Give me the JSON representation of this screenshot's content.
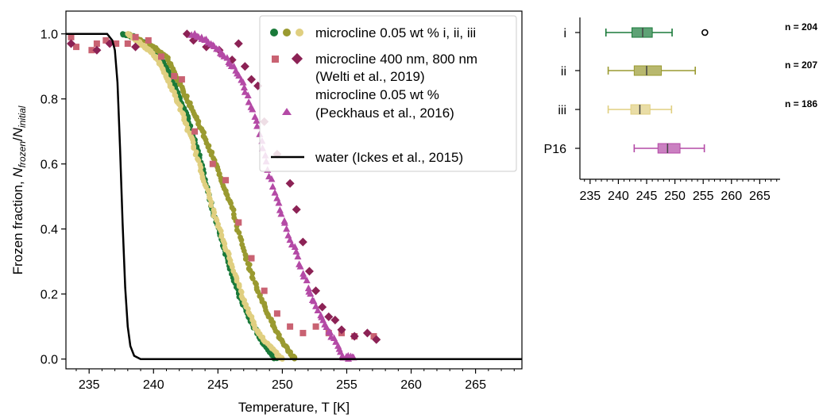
{
  "chart_data": [
    {
      "type": "scatter",
      "xlabel": "Temperature, T [K]",
      "ylabel": "Frozen fraction, N_frozen/N_initial",
      "xlim": [
        233.2,
        268.6
      ],
      "ylim": [
        -0.03,
        1.07
      ],
      "xticks": [
        "235",
        "240",
        "245",
        "250",
        "255",
        "260",
        "265"
      ],
      "yticks": [
        "0.0",
        "0.2",
        "0.4",
        "0.6",
        "0.8",
        "1.0"
      ],
      "legend": {
        "placement": "top-right",
        "entries": [
          {
            "lines": [
              "microcline 0.05 wt % i, ii, iii"
            ]
          },
          {
            "lines": [
              "microcline 400 nm, 800 nm",
              "(Welti et al., 2019)"
            ]
          },
          {
            "lines": [
              "microcline 0.05 wt %",
              "(Peckhaus et al., 2016)"
            ]
          },
          {
            "lines": [
              "water (Ickes et al., 2015)"
            ]
          }
        ]
      },
      "series": [
        {
          "name": "microcline 0.05 wt % i",
          "color": "#1a7a3a",
          "marker": "circle",
          "curve": [
            [
              237.6,
              1.0
            ],
            [
              238.5,
              0.99
            ],
            [
              239.5,
              0.97
            ],
            [
              240.5,
              0.93
            ],
            [
              241.5,
              0.86
            ],
            [
              242.5,
              0.76
            ],
            [
              243.5,
              0.63
            ],
            [
              244.5,
              0.47
            ],
            [
              245.5,
              0.34
            ],
            [
              246.5,
              0.21
            ],
            [
              247.5,
              0.12
            ],
            [
              248.5,
              0.05
            ],
            [
              249.5,
              0.0
            ]
          ]
        },
        {
          "name": "microcline 0.05 wt % ii",
          "color": "#9a9a30",
          "marker": "circle",
          "curve": [
            [
              238.0,
              1.0
            ],
            [
              239.0,
              0.98
            ],
            [
              240.0,
              0.96
            ],
            [
              241.0,
              0.93
            ],
            [
              242.0,
              0.85
            ],
            [
              243.0,
              0.77
            ],
            [
              244.0,
              0.68
            ],
            [
              245.0,
              0.58
            ],
            [
              246.0,
              0.48
            ],
            [
              247.0,
              0.33
            ],
            [
              248.0,
              0.22
            ],
            [
              249.0,
              0.13
            ],
            [
              250.0,
              0.05
            ],
            [
              251.0,
              0.0
            ]
          ]
        },
        {
          "name": "microcline 0.05 wt % iii",
          "color": "#e0cf80",
          "marker": "circle",
          "curve": [
            [
              238.0,
              1.0
            ],
            [
              239.0,
              0.97
            ],
            [
              240.0,
              0.94
            ],
            [
              241.0,
              0.87
            ],
            [
              242.0,
              0.78
            ],
            [
              243.0,
              0.67
            ],
            [
              244.0,
              0.54
            ],
            [
              245.0,
              0.41
            ],
            [
              246.0,
              0.3
            ],
            [
              247.0,
              0.18
            ],
            [
              248.0,
              0.09
            ],
            [
              249.0,
              0.04
            ],
            [
              250.0,
              0.0
            ]
          ]
        },
        {
          "name": "microcline 400 nm",
          "color": "#c96272",
          "marker": "square",
          "points": [
            [
              233.6,
              0.99
            ],
            [
              234.0,
              0.96
            ],
            [
              235.2,
              0.95
            ],
            [
              235.6,
              0.97
            ],
            [
              236.3,
              0.98
            ],
            [
              237.1,
              0.97
            ],
            [
              238.0,
              0.97
            ],
            [
              238.6,
              0.99
            ],
            [
              239.6,
              0.98
            ],
            [
              240.6,
              0.93
            ],
            [
              241.6,
              0.87
            ],
            [
              242.2,
              0.86
            ],
            [
              243.2,
              0.7
            ],
            [
              244.6,
              0.6
            ],
            [
              245.6,
              0.55
            ],
            [
              246.6,
              0.42
            ],
            [
              247.6,
              0.31
            ],
            [
              248.6,
              0.21
            ],
            [
              249.6,
              0.14
            ],
            [
              250.6,
              0.1
            ],
            [
              251.6,
              0.08
            ],
            [
              252.6,
              0.1
            ],
            [
              253.6,
              0.08
            ],
            [
              254.6,
              0.08
            ],
            [
              255.6,
              0.07
            ],
            [
              257.1,
              0.07
            ]
          ]
        },
        {
          "name": "microcline 800 nm",
          "color": "#8c2255",
          "marker": "diamond",
          "points": [
            [
              233.6,
              0.97
            ],
            [
              235.6,
              0.95
            ],
            [
              236.6,
              0.97
            ],
            [
              238.6,
              0.96
            ],
            [
              242.6,
              1.0
            ],
            [
              243.1,
              0.98
            ],
            [
              244.1,
              0.96
            ],
            [
              245.1,
              0.95
            ],
            [
              246.1,
              0.92
            ],
            [
              246.6,
              0.97
            ],
            [
              247.1,
              0.9
            ],
            [
              247.6,
              0.86
            ],
            [
              248.1,
              0.84
            ],
            [
              248.6,
              0.73
            ],
            [
              249.6,
              0.63
            ],
            [
              250.6,
              0.54
            ],
            [
              251.1,
              0.46
            ],
            [
              251.6,
              0.36
            ],
            [
              252.1,
              0.27
            ],
            [
              252.6,
              0.21
            ],
            [
              253.1,
              0.16
            ],
            [
              253.6,
              0.13
            ],
            [
              254.1,
              0.12
            ],
            [
              254.6,
              0.09
            ],
            [
              255.6,
              0.07
            ],
            [
              256.6,
              0.08
            ],
            [
              257.3,
              0.06
            ]
          ]
        },
        {
          "name": "microcline 0.05 wt % (Peckhaus et al., 2016)",
          "color": "#b44aa6",
          "marker": "triangle",
          "curve": [
            [
              243.0,
              1.0
            ],
            [
              244.0,
              0.98
            ],
            [
              245.0,
              0.95
            ],
            [
              246.0,
              0.91
            ],
            [
              247.0,
              0.84
            ],
            [
              248.0,
              0.73
            ],
            [
              249.0,
              0.57
            ],
            [
              250.0,
              0.44
            ],
            [
              251.0,
              0.33
            ],
            [
              252.0,
              0.22
            ],
            [
              253.0,
              0.13
            ],
            [
              254.0,
              0.06
            ],
            [
              254.7,
              0.01
            ],
            [
              255.6,
              0.0
            ]
          ]
        },
        {
          "name": "water (Ickes et al., 2015)",
          "color": "#000000",
          "marker": "line",
          "curve": [
            [
              233.2,
              1.0
            ],
            [
              236.4,
              1.0
            ],
            [
              236.8,
              0.98
            ],
            [
              237.0,
              0.95
            ],
            [
              237.2,
              0.85
            ],
            [
              237.4,
              0.65
            ],
            [
              237.6,
              0.42
            ],
            [
              237.8,
              0.22
            ],
            [
              238.0,
              0.1
            ],
            [
              238.2,
              0.04
            ],
            [
              238.5,
              0.01
            ],
            [
              239.0,
              0.0
            ],
            [
              268.6,
              0.0
            ]
          ]
        }
      ]
    },
    {
      "type": "box",
      "xticks": [
        "235",
        "240",
        "245",
        "250",
        "255",
        "260",
        "265"
      ],
      "xlim": [
        233.2,
        268.6
      ],
      "categories": [
        "i",
        "ii",
        "iii",
        "P16"
      ],
      "boxes": [
        {
          "label": "i",
          "color": "#1a7a3a",
          "min": 237.8,
          "q1": 242.4,
          "median": 244.3,
          "q3": 246.0,
          "max": 249.5,
          "outliers": [
            255.3
          ],
          "n_label": "n = 204"
        },
        {
          "label": "ii",
          "color": "#9a9a30",
          "min": 238.2,
          "q1": 242.8,
          "median": 245.0,
          "q3": 247.6,
          "max": 253.6,
          "outliers": [],
          "n_label": "n = 207"
        },
        {
          "label": "iii",
          "color": "#e0cf80",
          "min": 238.2,
          "q1": 242.2,
          "median": 243.8,
          "q3": 245.6,
          "max": 249.4,
          "outliers": [],
          "n_label": "n = 186"
        },
        {
          "label": "P16",
          "color": "#b44aa6",
          "min": 242.8,
          "q1": 247.0,
          "median": 248.7,
          "q3": 250.9,
          "max": 255.2,
          "outliers": [],
          "n_label": ""
        }
      ]
    }
  ]
}
